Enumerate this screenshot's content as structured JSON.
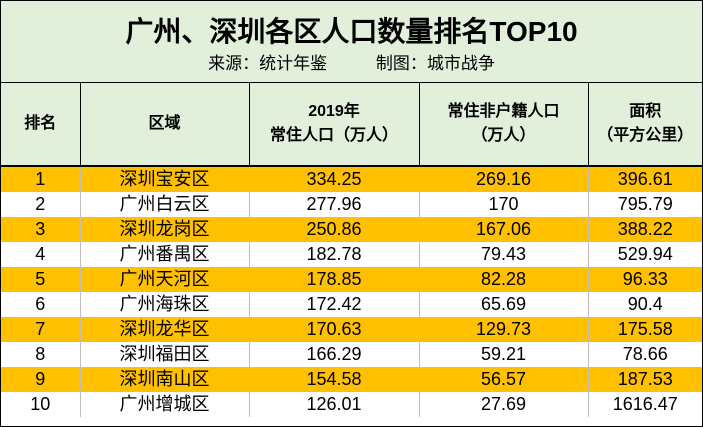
{
  "title": "广州、深圳各区人口数量排名TOP10",
  "source": "来源：统计年鉴",
  "maker": "制图：城市战争",
  "colors": {
    "header_bg": "#e2efda",
    "highlight_row": "#ffc000"
  },
  "columns": [
    {
      "line1": "排名",
      "line2": ""
    },
    {
      "line1": "区域",
      "line2": ""
    },
    {
      "line1": "2019年",
      "line2": "常住人口（万人）"
    },
    {
      "line1": "常住非户籍人口",
      "line2": "（万人）"
    },
    {
      "line1": "面积",
      "line2": "（平方公里）"
    }
  ],
  "rows": [
    [
      "1",
      "深圳宝安区",
      "334.25",
      "269.16",
      "396.61"
    ],
    [
      "2",
      "广州白云区",
      "277.96",
      "170",
      "795.79"
    ],
    [
      "3",
      "深圳龙岗区",
      "250.86",
      "167.06",
      "388.22"
    ],
    [
      "4",
      "广州番禺区",
      "182.78",
      "79.43",
      "529.94"
    ],
    [
      "5",
      "广州天河区",
      "178.85",
      "82.28",
      "96.33"
    ],
    [
      "6",
      "广州海珠区",
      "172.42",
      "65.69",
      "90.4"
    ],
    [
      "7",
      "深圳龙华区",
      "170.63",
      "129.73",
      "175.58"
    ],
    [
      "8",
      "深圳福田区",
      "166.29",
      "59.21",
      "78.66"
    ],
    [
      "9",
      "深圳南山区",
      "154.58",
      "56.57",
      "187.53"
    ],
    [
      "10",
      "广州增城区",
      "126.01",
      "27.69",
      "1616.47"
    ]
  ]
}
